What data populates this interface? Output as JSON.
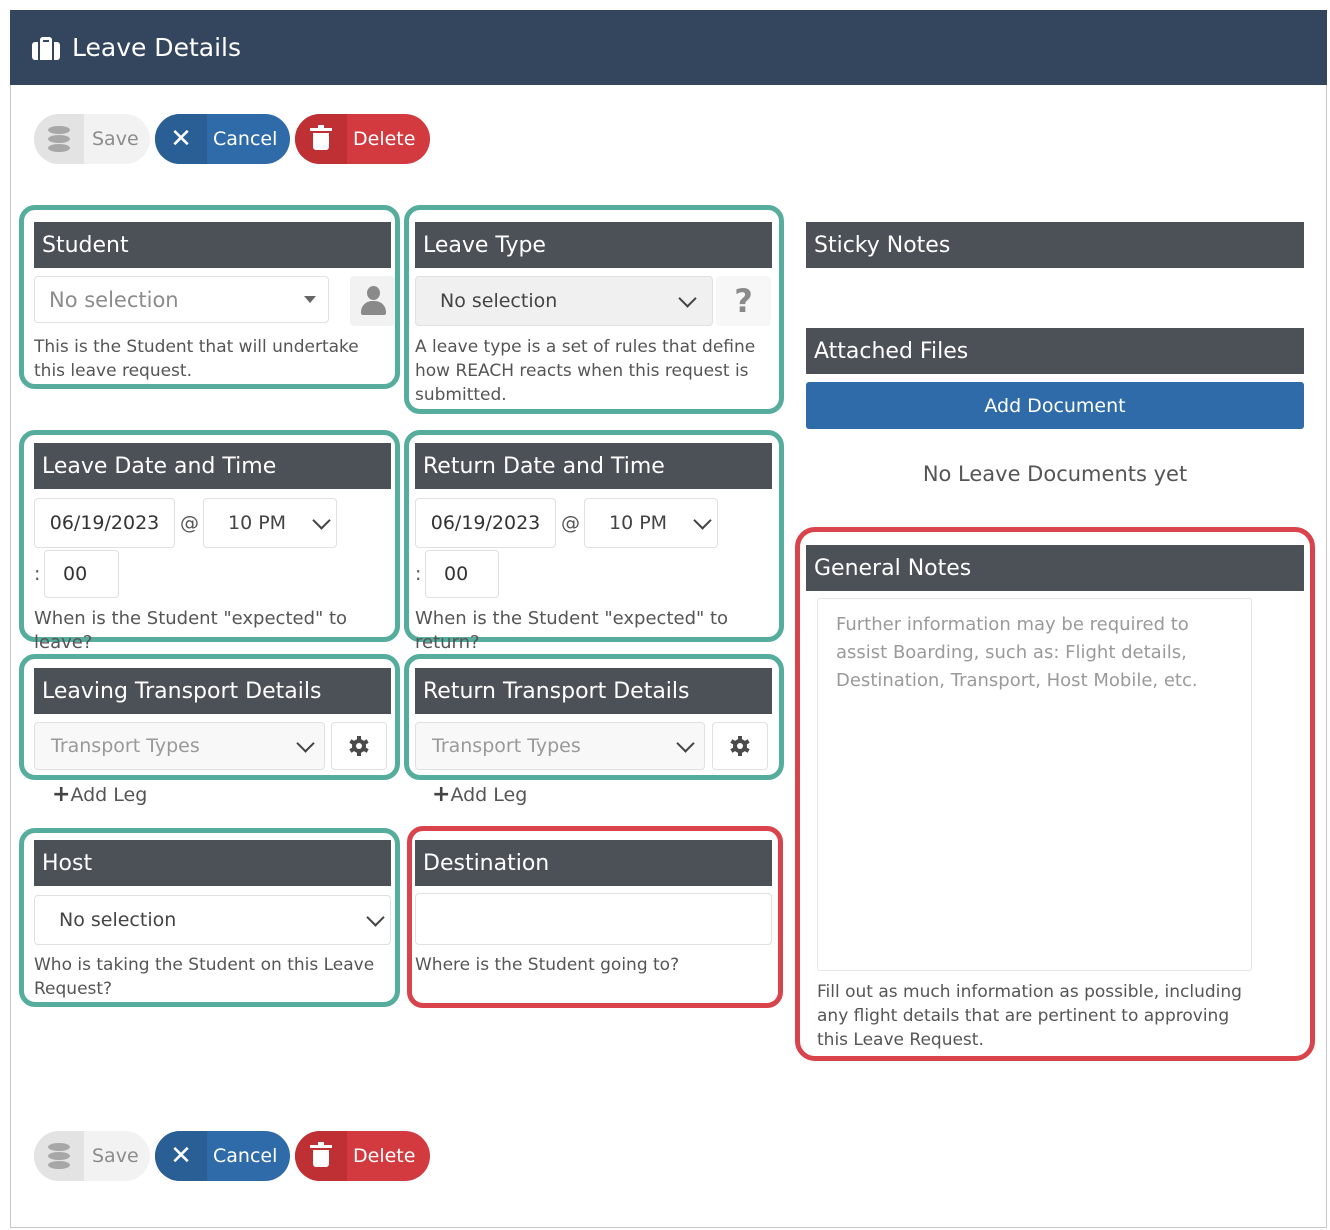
{
  "header": {
    "title": "Leave Details",
    "icon": "briefcase-icon"
  },
  "toolbar": {
    "save_label": "Save",
    "cancel_label": "Cancel",
    "delete_label": "Delete"
  },
  "student": {
    "heading": "Student",
    "value": "No selection",
    "help": "This is the Student that will undertake this leave request."
  },
  "leave_type": {
    "heading": "Leave Type",
    "value": "No selection",
    "help_icon": "?",
    "help": "A leave type is a set of rules that define how REACH reacts when this request is submitted."
  },
  "leave_datetime": {
    "heading": "Leave Date and Time",
    "date": "06/19/2023",
    "at": "@",
    "hour": "10 PM",
    "colon": ":",
    "minute": "00",
    "help": "When is the Student \"expected\" to leave?"
  },
  "return_datetime": {
    "heading": "Return Date and Time",
    "date": "06/19/2023",
    "at": "@",
    "hour": "10 PM",
    "colon": ":",
    "minute": "00",
    "help": "When is the Student \"expected\" to return?"
  },
  "leaving_transport": {
    "heading": "Leaving Transport Details",
    "placeholder": "Transport Types",
    "add_leg": "Add Leg"
  },
  "return_transport": {
    "heading": "Return Transport Details",
    "placeholder": "Transport Types",
    "add_leg": "Add Leg"
  },
  "host": {
    "heading": "Host",
    "value": "No selection",
    "help": "Who is taking the Student on this Leave Request?"
  },
  "destination": {
    "heading": "Destination",
    "value": "",
    "help": "Where is the Student going to?"
  },
  "sticky_notes": {
    "heading": "Sticky Notes"
  },
  "attached_files": {
    "heading": "Attached Files",
    "add_button": "Add Document",
    "empty_text": "No Leave Documents yet"
  },
  "general_notes": {
    "heading": "General Notes",
    "placeholder": "Further information may be required to assist Boarding, such as: Flight details, Destination, Transport, Host Mobile, etc.",
    "help": "Fill out as much information as possible, including any flight details that are pertinent to approving this Leave Request."
  },
  "colors": {
    "header_bg": "#34465e",
    "panel_head": "#4c5057",
    "highlight_green": "#56ad9d",
    "highlight_red": "#d9434b",
    "primary_blue": "#2f6ba8",
    "danger_red": "#d23a3f"
  }
}
